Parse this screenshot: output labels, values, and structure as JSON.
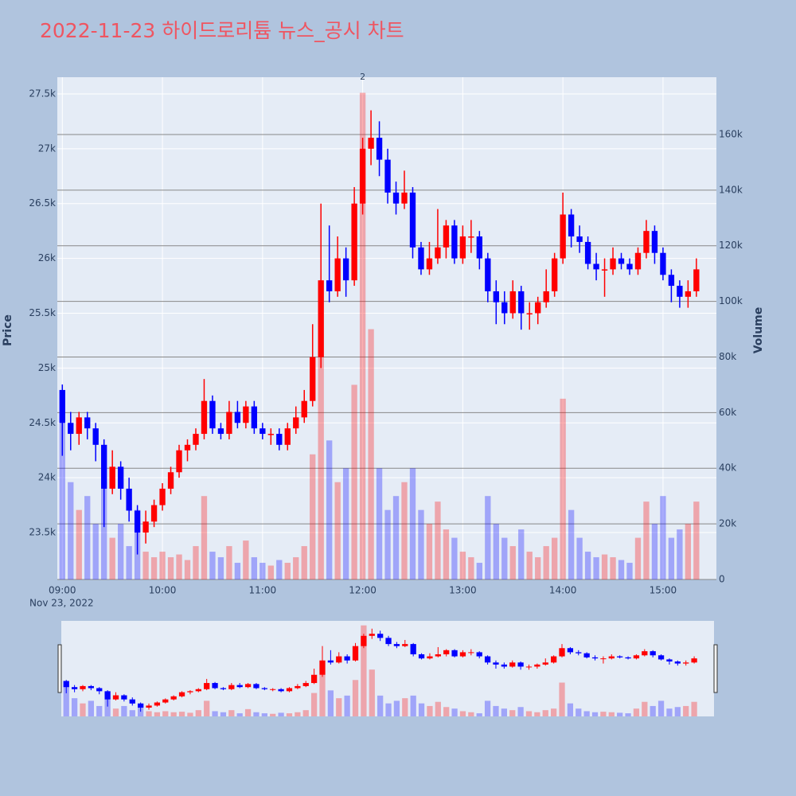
{
  "chart_data": {
    "type": "candlestick",
    "title": "2022-11-23 하이드로리튬 뉴스_공시 차트",
    "y_label": "Price",
    "y2_label": "Volume",
    "x_date_label": "Nov 23, 2022",
    "increasing_color": "#ff0000",
    "decreasing_color": "#0000ff",
    "x": [
      "2022-11-23 09:00",
      "2022-11-23 09:05",
      "2022-11-23 09:10",
      "2022-11-23 09:15",
      "2022-11-23 09:20",
      "2022-11-23 09:25",
      "2022-11-23 09:30",
      "2022-11-23 09:35",
      "2022-11-23 09:40",
      "2022-11-23 09:45",
      "2022-11-23 09:50",
      "2022-11-23 09:55",
      "2022-11-23 10:00",
      "2022-11-23 10:05",
      "2022-11-23 10:10",
      "2022-11-23 10:15",
      "2022-11-23 10:20",
      "2022-11-23 10:25",
      "2022-11-23 10:30",
      "2022-11-23 10:35",
      "2022-11-23 10:40",
      "2022-11-23 10:45",
      "2022-11-23 10:50",
      "2022-11-23 10:55",
      "2022-11-23 11:00",
      "2022-11-23 11:05",
      "2022-11-23 11:10",
      "2022-11-23 11:15",
      "2022-11-23 11:20",
      "2022-11-23 11:25",
      "2022-11-23 11:30",
      "2022-11-23 11:35",
      "2022-11-23 11:40",
      "2022-11-23 11:45",
      "2022-11-23 11:50",
      "2022-11-23 11:55",
      "2022-11-23 12:00",
      "2022-11-23 12:05",
      "2022-11-23 12:10",
      "2022-11-23 12:15",
      "2022-11-23 12:20",
      "2022-11-23 12:25",
      "2022-11-23 12:30",
      "2022-11-23 12:35",
      "2022-11-23 12:40",
      "2022-11-23 12:45",
      "2022-11-23 12:50",
      "2022-11-23 12:55",
      "2022-11-23 13:00",
      "2022-11-23 13:05",
      "2022-11-23 13:10",
      "2022-11-23 13:15",
      "2022-11-23 13:20",
      "2022-11-23 13:25",
      "2022-11-23 13:30",
      "2022-11-23 13:35",
      "2022-11-23 13:40",
      "2022-11-23 13:45",
      "2022-11-23 13:50",
      "2022-11-23 13:55",
      "2022-11-23 14:00",
      "2022-11-23 14:05",
      "2022-11-23 14:10",
      "2022-11-23 14:15",
      "2022-11-23 14:20",
      "2022-11-23 14:25",
      "2022-11-23 14:30",
      "2022-11-23 14:35",
      "2022-11-23 14:40",
      "2022-11-23 14:45",
      "2022-11-23 14:50",
      "2022-11-23 14:55",
      "2022-11-23 15:00",
      "2022-11-23 15:05",
      "2022-11-23 15:10",
      "2022-11-23 15:15",
      "2022-11-23 15:20"
    ],
    "open": [
      24800,
      24500,
      24400,
      24550,
      24450,
      24300,
      23900,
      24100,
      23900,
      23700,
      23500,
      23600,
      23750,
      23900,
      24050,
      24250,
      24300,
      24400,
      24700,
      24450,
      24400,
      24600,
      24500,
      24650,
      24450,
      24400,
      24400,
      24300,
      24450,
      24550,
      24700,
      25100,
      25800,
      25700,
      26000,
      25800,
      26500,
      27000,
      27100,
      26900,
      26600,
      26500,
      26600,
      26100,
      25900,
      26000,
      26100,
      26300,
      26000,
      26200,
      26200,
      26000,
      25700,
      25600,
      25500,
      25700,
      25500,
      25500,
      25600,
      25700,
      26000,
      26400,
      26200,
      26150,
      25950,
      25900,
      25900,
      26000,
      25950,
      25900,
      26050,
      26250,
      26050,
      25850,
      25750,
      25650,
      25700
    ],
    "high": [
      24850,
      24600,
      24600,
      24600,
      24500,
      24350,
      24250,
      24150,
      24000,
      23750,
      23700,
      23800,
      23950,
      24100,
      24300,
      24350,
      24450,
      24900,
      24750,
      24500,
      24700,
      24700,
      24700,
      24700,
      24500,
      24450,
      24450,
      24500,
      24650,
      24800,
      25400,
      26500,
      26300,
      26200,
      26100,
      26650,
      27100,
      27350,
      27250,
      27000,
      26700,
      26800,
      26650,
      26150,
      26150,
      26450,
      26350,
      26350,
      26300,
      26350,
      26250,
      26050,
      25800,
      25700,
      25800,
      25750,
      25600,
      25650,
      25900,
      26050,
      26600,
      26450,
      26300,
      26200,
      26050,
      26000,
      26100,
      26050,
      26000,
      26100,
      26350,
      26300,
      26100,
      25900,
      25800,
      25800,
      26000
    ],
    "low": [
      24200,
      24250,
      24300,
      24350,
      24150,
      23550,
      23850,
      23800,
      23600,
      23300,
      23400,
      23550,
      23700,
      23850,
      24000,
      24150,
      24250,
      24350,
      24400,
      24350,
      24350,
      24450,
      24450,
      24400,
      24350,
      24300,
      24250,
      24250,
      24400,
      24500,
      24650,
      25000,
      25600,
      25650,
      25650,
      25750,
      26400,
      26850,
      26750,
      26500,
      26400,
      26450,
      26000,
      25850,
      25850,
      25950,
      26000,
      25950,
      25950,
      26050,
      25900,
      25600,
      25400,
      25400,
      25450,
      25350,
      25350,
      25400,
      25550,
      25650,
      25950,
      26100,
      26050,
      25900,
      25800,
      25650,
      25850,
      25900,
      25850,
      25850,
      26000,
      25950,
      25800,
      25600,
      25550,
      25550,
      25650
    ],
    "close": [
      24500,
      24400,
      24550,
      24450,
      24300,
      23900,
      24100,
      23900,
      23700,
      23500,
      23600,
      23750,
      23900,
      24050,
      24250,
      24300,
      24400,
      24700,
      24450,
      24400,
      24600,
      24500,
      24650,
      24450,
      24400,
      24400,
      24300,
      24450,
      24550,
      24700,
      25100,
      25800,
      25700,
      26000,
      25800,
      26500,
      27000,
      27100,
      26900,
      26600,
      26500,
      26600,
      26100,
      25900,
      26000,
      26100,
      26300,
      26000,
      26200,
      26200,
      26000,
      25700,
      25600,
      25500,
      25700,
      25500,
      25500,
      25600,
      25700,
      26000,
      26400,
      26200,
      26150,
      25950,
      25900,
      25900,
      26000,
      25950,
      25900,
      26050,
      26250,
      26050,
      25850,
      25750,
      25650,
      25700,
      25900
    ],
    "volume": {
      "name": "Volume",
      "axis": "y2",
      "values": [
        60000,
        35000,
        25000,
        30000,
        20000,
        35000,
        15000,
        20000,
        12000,
        25000,
        10000,
        8000,
        10000,
        8000,
        9000,
        7000,
        12000,
        30000,
        10000,
        8000,
        12000,
        6000,
        14000,
        8000,
        6000,
        5000,
        7000,
        6000,
        8000,
        12000,
        45000,
        80000,
        50000,
        35000,
        40000,
        70000,
        175000,
        90000,
        40000,
        25000,
        30000,
        35000,
        40000,
        25000,
        20000,
        28000,
        18000,
        15000,
        10000,
        8000,
        6000,
        30000,
        20000,
        15000,
        12000,
        18000,
        10000,
        8000,
        12000,
        15000,
        65000,
        25000,
        15000,
        10000,
        8000,
        9000,
        8000,
        7000,
        6000,
        15000,
        28000,
        20000,
        30000,
        15000,
        18000,
        20000,
        28000
      ]
    },
    "annotations": [
      {
        "x": "2022-11-23 12:00",
        "text": "2"
      }
    ],
    "xlim": [
      "2022-11-23 08:57",
      "2022-11-23 15:32"
    ],
    "xticks": [
      {
        "value": "2022-11-23 09:00",
        "label": "09:00"
      },
      {
        "value": "2022-11-23 10:00",
        "label": "10:00"
      },
      {
        "value": "2022-11-23 11:00",
        "label": "11:00"
      },
      {
        "value": "2022-11-23 12:00",
        "label": "12:00"
      },
      {
        "value": "2022-11-23 13:00",
        "label": "13:00"
      },
      {
        "value": "2022-11-23 14:00",
        "label": "14:00"
      },
      {
        "value": "2022-11-23 15:00",
        "label": "15:00"
      }
    ],
    "ylim": [
      23072,
      27652
    ],
    "yticks": [
      {
        "value": 23500,
        "label": "23.5k"
      },
      {
        "value": 24000,
        "label": "24k"
      },
      {
        "value": 24500,
        "label": "24.5k"
      },
      {
        "value": 25000,
        "label": "25k"
      },
      {
        "value": 25500,
        "label": "25.5k"
      },
      {
        "value": 26000,
        "label": "26k"
      },
      {
        "value": 26500,
        "label": "26.5k"
      },
      {
        "value": 27000,
        "label": "27k"
      },
      {
        "value": 27500,
        "label": "27.5k"
      }
    ],
    "y2lim": [
      0,
      180600
    ],
    "y2ticks": [
      0,
      {
        "value": 20000,
        "label": "20k"
      },
      {
        "value": 40000,
        "label": "40k"
      },
      {
        "value": 60000,
        "label": "60k"
      },
      {
        "value": 80000,
        "label": "80k"
      },
      {
        "value": 100000,
        "label": "100k"
      },
      {
        "value": 120000,
        "label": "120k"
      },
      {
        "value": 140000,
        "label": "140k"
      },
      {
        "value": 160000,
        "label": "160k"
      }
    ],
    "grid": true,
    "range_slider": true
  }
}
